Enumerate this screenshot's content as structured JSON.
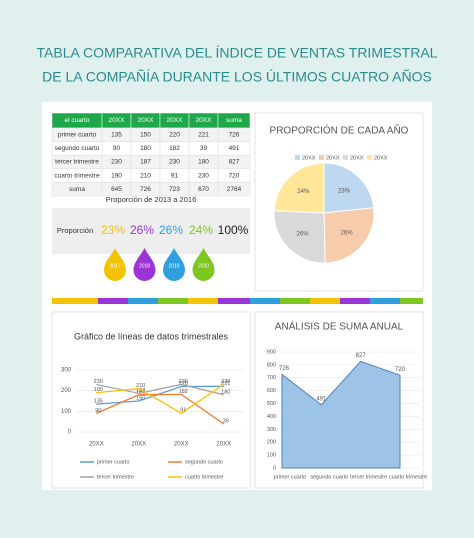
{
  "header": {
    "title_line1": "TABLA COMPARATIVA DEL ÍNDICE DE VENTAS TRIMESTRAL",
    "title_line2": "DE LA COMPAÑÍA DURANTE LOS ÚLTIMOS CUATRO AÑOS"
  },
  "table": {
    "columns": [
      "el cuarto",
      "20XX",
      "20XX",
      "20XX",
      "20XX",
      "suma"
    ],
    "rows": [
      [
        "primer cuarto",
        135,
        150,
        220,
        221,
        726
      ],
      [
        "segundo cuarto",
        90,
        180,
        182,
        39,
        491
      ],
      [
        "tercer trimestre",
        230,
        187,
        230,
        180,
        827
      ],
      [
        "cuarto trimestre",
        190,
        210,
        91,
        230,
        720
      ],
      [
        "suma",
        645,
        726,
        723,
        670,
        2764
      ]
    ]
  },
  "proportion": {
    "title": "Proporción de 2013 a 2016",
    "label": "Proporción",
    "values": [
      "23%",
      "26%",
      "26%",
      "24%",
      "100%"
    ],
    "years": [
      "2017",
      "2018",
      "2019",
      "2020"
    ],
    "colors": [
      "#f2c300",
      "#9b35d6",
      "#2f9fe0",
      "#7ec620"
    ]
  },
  "chart_data": [
    {
      "type": "pie",
      "title": "PROPORCIÓN DE CADA AÑO",
      "categories": [
        "20XX",
        "20XX",
        "20XX",
        "20XX"
      ],
      "values": [
        645,
        726,
        723,
        670
      ],
      "value_labels": [
        "23%",
        "26%",
        "26%",
        "24%"
      ],
      "colors": [
        "#bdd7ee",
        "#f8cbad",
        "#d9d9d9",
        "#ffe699"
      ]
    },
    {
      "type": "line",
      "title": "Gráfico de líneas de datos trimestrales",
      "categories": [
        "20XX",
        "20XX",
        "20XX",
        "20XX"
      ],
      "ylim": [
        0,
        300
      ],
      "yticks": [
        0,
        100,
        200,
        300
      ],
      "series": [
        {
          "name": "primer cuarto",
          "color": "#5b9bd5",
          "values": [
            135,
            150,
            220,
            221
          ]
        },
        {
          "name": "segundo cuarto",
          "color": "#ed7d31",
          "values": [
            90,
            180,
            182,
            39
          ]
        },
        {
          "name": "tercer trimestre",
          "color": "#a5a5a5",
          "values": [
            230,
            187,
            230,
            180
          ]
        },
        {
          "name": "cuarto trimestre",
          "color": "#ffc000",
          "values": [
            190,
            210,
            91,
            230
          ]
        }
      ]
    },
    {
      "type": "area",
      "title": "ANÁLISIS DE SUMA ANUAL",
      "categories": [
        "primer cuarto",
        "segundo cuarto",
        "tercer trimestre",
        "cuarto trimestre"
      ],
      "values": [
        726,
        491,
        827,
        720
      ],
      "color": "#9dc3e6",
      "ylim": [
        0,
        900
      ],
      "yticks": [
        0,
        100,
        200,
        300,
        400,
        500,
        600,
        700,
        800,
        900
      ]
    }
  ]
}
